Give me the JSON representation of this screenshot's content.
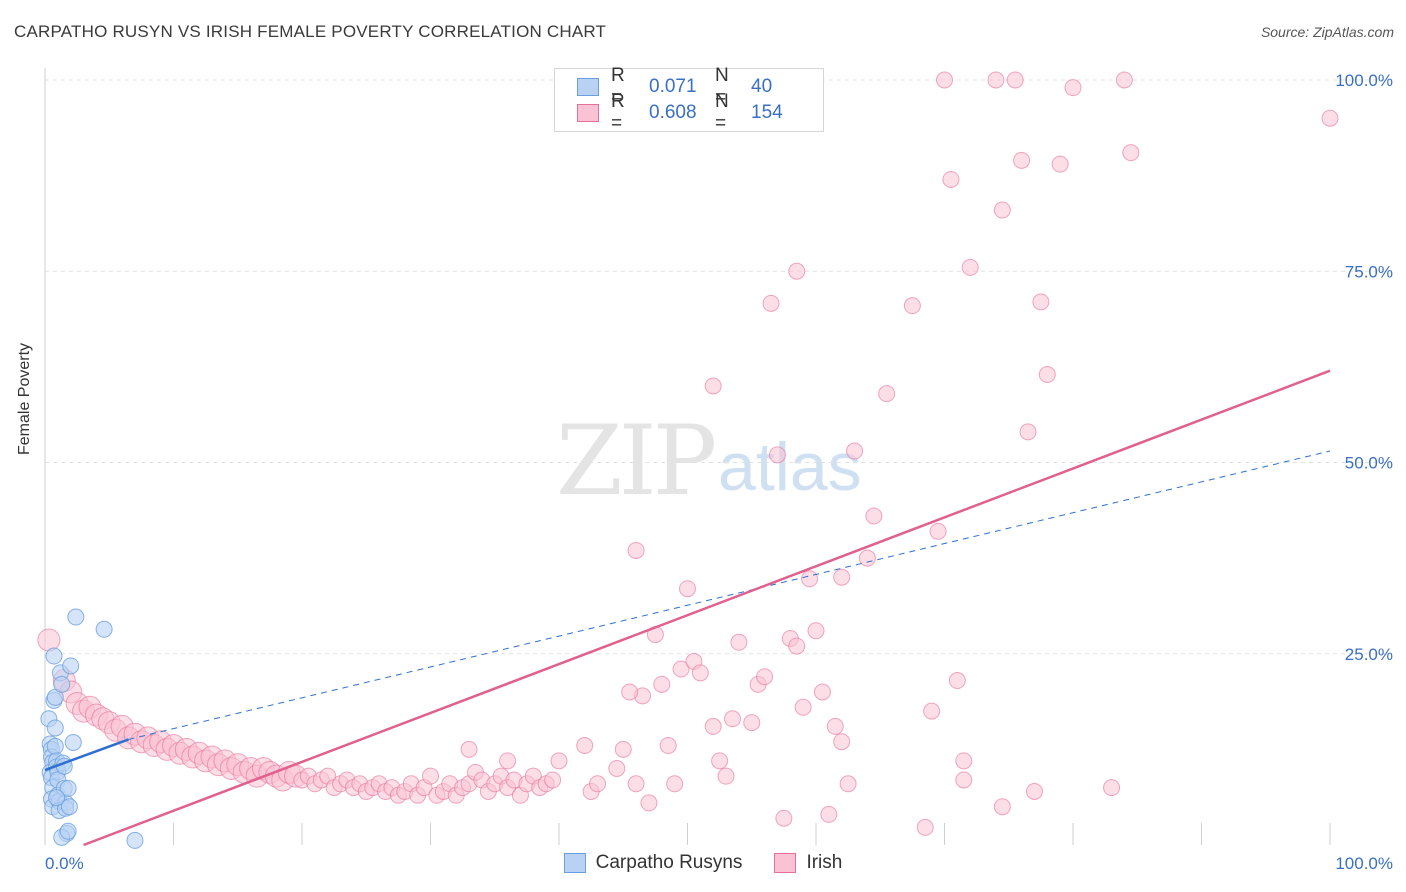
{
  "title": "CARPATHO RUSYN VS IRISH FEMALE POVERTY CORRELATION CHART",
  "source": "Source: ZipAtlas.com",
  "watermark": {
    "zip": "ZIP",
    "atlas": "atlas"
  },
  "colors": {
    "blue": "#6aa0e0",
    "blue_fill": "#b9d2f3",
    "blue_line": "#2f6fd0",
    "pink": "#e76f9b",
    "pink_fill": "#f9c3d4",
    "pink_line": "#e0608e",
    "tick_text": "#3a6fc4"
  },
  "legend": {
    "rows": [
      {
        "r_label": "R =",
        "r_value": "0.071",
        "n_label": "N =",
        "n_value": "40"
      },
      {
        "r_label": "R =",
        "r_value": "0.608",
        "n_label": "N =",
        "n_value": "154"
      }
    ]
  },
  "bottom_legend": [
    "Carpatho Rusyns",
    "Irish"
  ],
  "chart_data": {
    "type": "scatter",
    "title": "CARPATHO RUSYN VS IRISH FEMALE POVERTY CORRELATION CHART",
    "xlabel": "",
    "ylabel": "Female Poverty",
    "xlim": [
      0,
      100
    ],
    "ylim": [
      0,
      100
    ],
    "x_tick_labels": [
      "0.0%",
      "100.0%"
    ],
    "y_tick_labels": [
      {
        "value": 25,
        "label": "25.0%"
      },
      {
        "value": 50,
        "label": "50.0%"
      },
      {
        "value": 75,
        "label": "75.0%"
      },
      {
        "value": 100,
        "label": "100.0%"
      }
    ],
    "grid": true,
    "legend_position": "top-center",
    "series": [
      {
        "name": "Carpatho Rusyns",
        "color": "#6aa0e0",
        "trend": {
          "x": [
            0,
            6.5
          ],
          "y": [
            9.8,
            13.8
          ]
        },
        "trend_extension": {
          "x": [
            6.5,
            100
          ],
          "y": [
            13.8,
            51.5
          ]
        },
        "points": [
          [
            0.3,
            16.5
          ],
          [
            0.4,
            13.2
          ],
          [
            0.5,
            12.5
          ],
          [
            0.5,
            11.5
          ],
          [
            0.6,
            10.8
          ],
          [
            0.4,
            9.5
          ],
          [
            0.5,
            8.8
          ],
          [
            0.6,
            7.5
          ],
          [
            0.5,
            6.0
          ],
          [
            0.6,
            5.0
          ],
          [
            0.7,
            18.9
          ],
          [
            0.7,
            24.7
          ],
          [
            0.8,
            19.3
          ],
          [
            0.8,
            15.3
          ],
          [
            0.8,
            12.9
          ],
          [
            0.9,
            11.0
          ],
          [
            0.9,
            10.2
          ],
          [
            1.0,
            9.6
          ],
          [
            1.0,
            8.5
          ],
          [
            1.0,
            6.5
          ],
          [
            1.1,
            5.7
          ],
          [
            1.1,
            4.5
          ],
          [
            1.2,
            22.5
          ],
          [
            1.3,
            21.0
          ],
          [
            1.4,
            10.7
          ],
          [
            1.5,
            10.3
          ],
          [
            1.5,
            7.4
          ],
          [
            1.6,
            5.5
          ],
          [
            1.6,
            4.8
          ],
          [
            1.7,
            1.5
          ],
          [
            1.8,
            7.4
          ],
          [
            1.9,
            5.0
          ],
          [
            1.3,
            1.0
          ],
          [
            1.8,
            1.8
          ],
          [
            2.0,
            23.4
          ],
          [
            2.2,
            13.4
          ],
          [
            2.4,
            29.8
          ],
          [
            4.6,
            28.2
          ],
          [
            7.0,
            0.6
          ],
          [
            0.9,
            6.2
          ]
        ]
      },
      {
        "name": "Irish",
        "color": "#e76f9b",
        "trend": {
          "x": [
            3.0,
            100
          ],
          "y": [
            0.0,
            62.0
          ]
        },
        "points": [
          [
            0.3,
            26.8
          ],
          [
            1.5,
            21.5
          ],
          [
            2.0,
            20.0
          ],
          [
            2.5,
            18.5
          ],
          [
            3.0,
            17.5
          ],
          [
            3.5,
            18.0
          ],
          [
            4.0,
            17.0
          ],
          [
            4.5,
            16.5
          ],
          [
            5.0,
            16.0
          ],
          [
            5.5,
            15.0
          ],
          [
            6.0,
            15.5
          ],
          [
            6.5,
            14.0
          ],
          [
            7.0,
            14.5
          ],
          [
            7.5,
            13.5
          ],
          [
            8.0,
            14.0
          ],
          [
            8.5,
            13.0
          ],
          [
            9.0,
            13.5
          ],
          [
            9.5,
            12.5
          ],
          [
            10.0,
            13.0
          ],
          [
            10.5,
            12.0
          ],
          [
            11.0,
            12.5
          ],
          [
            11.5,
            11.5
          ],
          [
            12.0,
            12.0
          ],
          [
            12.5,
            11.0
          ],
          [
            13.0,
            11.5
          ],
          [
            13.5,
            10.5
          ],
          [
            14.0,
            11.0
          ],
          [
            14.5,
            10.0
          ],
          [
            15.0,
            10.5
          ],
          [
            15.5,
            9.5
          ],
          [
            16.0,
            10.0
          ],
          [
            16.5,
            9.0
          ],
          [
            17.0,
            10.0
          ],
          [
            17.5,
            9.5
          ],
          [
            18.0,
            9.0
          ],
          [
            18.5,
            8.5
          ],
          [
            19.0,
            9.5
          ],
          [
            19.5,
            9.0
          ],
          [
            20.0,
            8.5
          ],
          [
            20.5,
            9.0
          ],
          [
            21.0,
            8.0
          ],
          [
            21.5,
            8.5
          ],
          [
            22.0,
            9.0
          ],
          [
            22.5,
            7.5
          ],
          [
            23.0,
            8.0
          ],
          [
            23.5,
            8.5
          ],
          [
            24.0,
            7.5
          ],
          [
            24.5,
            8.0
          ],
          [
            25.0,
            7.0
          ],
          [
            25.5,
            7.5
          ],
          [
            26.0,
            8.0
          ],
          [
            26.5,
            7.0
          ],
          [
            27.0,
            7.5
          ],
          [
            27.5,
            6.5
          ],
          [
            28.0,
            7.0
          ],
          [
            28.5,
            8.0
          ],
          [
            29.0,
            6.5
          ],
          [
            29.5,
            7.5
          ],
          [
            30.0,
            9.0
          ],
          [
            30.5,
            6.5
          ],
          [
            31.0,
            7.0
          ],
          [
            31.5,
            8.0
          ],
          [
            32.0,
            6.5
          ],
          [
            32.5,
            7.5
          ],
          [
            33.0,
            8.0
          ],
          [
            33.5,
            9.5
          ],
          [
            34.0,
            8.5
          ],
          [
            34.5,
            7.0
          ],
          [
            35.0,
            8.0
          ],
          [
            35.5,
            9.0
          ],
          [
            36.0,
            7.5
          ],
          [
            36.5,
            8.5
          ],
          [
            37.0,
            6.5
          ],
          [
            37.5,
            8.0
          ],
          [
            38.0,
            9.0
          ],
          [
            38.5,
            7.5
          ],
          [
            39.0,
            8.0
          ],
          [
            39.5,
            8.5
          ],
          [
            33.0,
            12.5
          ],
          [
            36.0,
            11.0
          ],
          [
            40.0,
            11.0
          ],
          [
            42.0,
            13.0
          ],
          [
            42.5,
            7.0
          ],
          [
            43.0,
            8.0
          ],
          [
            44.5,
            10.0
          ],
          [
            45.0,
            12.5
          ],
          [
            46.0,
            8.0
          ],
          [
            46.5,
            19.5
          ],
          [
            47.0,
            5.5
          ],
          [
            47.5,
            27.5
          ],
          [
            48.5,
            13.0
          ],
          [
            49.0,
            8.0
          ],
          [
            48.0,
            21.0
          ],
          [
            45.5,
            20.0
          ],
          [
            46.0,
            38.5
          ],
          [
            49.5,
            23.0
          ],
          [
            50.5,
            24.0
          ],
          [
            51.0,
            22.5
          ],
          [
            50.0,
            33.5
          ],
          [
            52.0,
            15.5
          ],
          [
            52.5,
            11.0
          ],
          [
            53.0,
            9.0
          ],
          [
            53.5,
            16.5
          ],
          [
            54.0,
            26.5
          ],
          [
            55.0,
            16.0
          ],
          [
            55.5,
            21.0
          ],
          [
            56.0,
            22.0
          ],
          [
            52.0,
            60.0
          ],
          [
            56.5,
            70.8
          ],
          [
            57.0,
            51.0
          ],
          [
            58.0,
            27.0
          ],
          [
            58.5,
            26.0
          ],
          [
            59.0,
            18.0
          ],
          [
            59.5,
            34.8
          ],
          [
            60.0,
            28.0
          ],
          [
            60.5,
            20.0
          ],
          [
            61.5,
            15.5
          ],
          [
            62.0,
            13.5
          ],
          [
            62.0,
            35.0
          ],
          [
            63.0,
            51.5
          ],
          [
            64.0,
            37.5
          ],
          [
            64.5,
            43.0
          ],
          [
            65.5,
            59.0
          ],
          [
            58.5,
            75.0
          ],
          [
            67.5,
            70.5
          ],
          [
            68.5,
            2.3
          ],
          [
            69.0,
            17.5
          ],
          [
            69.5,
            41.0
          ],
          [
            70.0,
            100.0
          ],
          [
            70.5,
            87.0
          ],
          [
            71.0,
            21.5
          ],
          [
            71.5,
            11.0
          ],
          [
            72.0,
            75.5
          ],
          [
            74.0,
            100.0
          ],
          [
            74.5,
            83.0
          ],
          [
            75.5,
            100.0
          ],
          [
            76.0,
            89.5
          ],
          [
            77.0,
            7.0
          ],
          [
            77.5,
            71.0
          ],
          [
            78.0,
            61.5
          ],
          [
            79.0,
            89.0
          ],
          [
            80.0,
            99.0
          ],
          [
            83.0,
            7.5
          ],
          [
            84.0,
            100.0
          ],
          [
            84.5,
            90.5
          ],
          [
            100.0,
            95.0
          ],
          [
            71.5,
            8.5
          ],
          [
            76.5,
            54.0
          ],
          [
            61.0,
            4.0
          ],
          [
            57.5,
            3.5
          ],
          [
            62.5,
            8.0
          ],
          [
            74.5,
            5.0
          ]
        ]
      }
    ]
  }
}
